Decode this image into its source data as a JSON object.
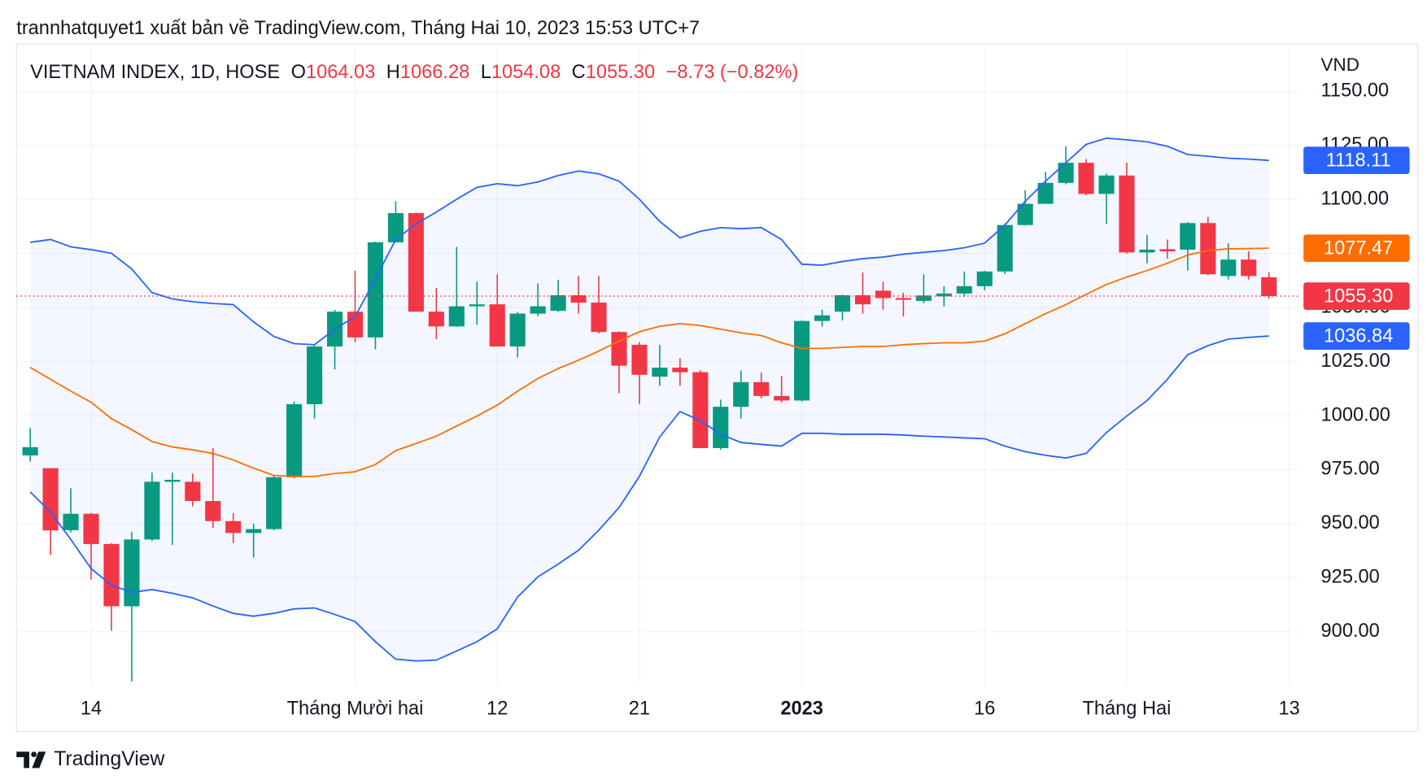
{
  "header": "trannhatquyet1 xuất bản về TradingView.com, Tháng Hai 10, 2023 15:53 UTC+7",
  "footer": "TradingView",
  "chart_data": {
    "type": "candlestick",
    "legend": {
      "symbol": "VIETNAM INDEX, 1D, HOSE",
      "items": [
        {
          "key": "O",
          "value": "1064.03"
        },
        {
          "key": "H",
          "value": "1066.28"
        },
        {
          "key": "L",
          "value": "1054.08"
        },
        {
          "key": "C",
          "value": "1055.30"
        }
      ],
      "change": "−8.73 (−0.82%)",
      "color": "#f23645"
    },
    "currency": "VND",
    "categories": [
      null,
      null,
      null,
      "14",
      null,
      null,
      null,
      null,
      null,
      null,
      null,
      null,
      null,
      null,
      null,
      null,
      "Tháng Mười hai",
      null,
      null,
      null,
      null,
      null,
      null,
      "12",
      null,
      null,
      null,
      null,
      null,
      null,
      "21",
      null,
      null,
      null,
      null,
      null,
      null,
      null,
      "2023",
      null,
      null,
      null,
      null,
      null,
      null,
      null,
      null,
      "16",
      null,
      null,
      null,
      null,
      null,
      null,
      "Tháng Hai",
      null,
      null,
      null,
      null,
      null,
      null,
      null,
      "13"
    ],
    "ylim": [
      875,
      1172
    ],
    "yticks": [
      {
        "value": 900,
        "label": "900.00"
      },
      {
        "value": 925,
        "label": "925.00"
      },
      {
        "value": 950,
        "label": "950.00"
      },
      {
        "value": 975,
        "label": "975.00"
      },
      {
        "value": 1000,
        "label": "1000.00"
      },
      {
        "value": 1025,
        "label": "1025.00"
      },
      {
        "value": 1050,
        "label": "1050.00"
      },
      {
        "value": 1075,
        "label": "1075.00"
      },
      {
        "value": 1100,
        "label": "1100.00"
      },
      {
        "value": 1125,
        "label": "1125.00"
      },
      {
        "value": 1150,
        "label": "1150.00"
      }
    ],
    "grid": true,
    "series": [
      {
        "type": "candlestick",
        "up_color": "#089981",
        "down_color": "#f23645",
        "last_label": "1055.30",
        "open": [
          981.6,
          975.7,
          947,
          954.6,
          940.6,
          911.8,
          942.7,
          969.4,
          969.4,
          960.5,
          951.2,
          945.7,
          947.5,
          971.5,
          1005.3,
          1032,
          1048.1,
          1036.2,
          1080.2,
          1093.7,
          1048.1,
          1041.3,
          1050.6,
          1051.5,
          1032,
          1047.2,
          1048.5,
          1055.7,
          1052.3,
          1038.7,
          1032.8,
          1018,
          1022.2,
          1020.1,
          985,
          1004.1,
          1015.5,
          1009.1,
          1007,
          1043.8,
          1048.1,
          1055.7,
          1057.8,
          1054.4,
          1053.1,
          1055.2,
          1056.5,
          1059.9,
          1066.7,
          1088.2,
          1098,
          1107.7,
          1117,
          1102.6,
          1111.1,
          1075.5,
          1077,
          1076.8,
          1089.1,
          1064.6,
          1072.2,
          1064.03,
          null
        ],
        "high": [
          994.3,
          975.7,
          966.4,
          955,
          941,
          946.1,
          973.6,
          973.6,
          973.2,
          985,
          955,
          950,
          972,
          1006.5,
          1032.5,
          1049,
          1067.1,
          1080.5,
          1099.2,
          1094,
          1059.1,
          1078.1,
          1062,
          1065.4,
          1048,
          1061.2,
          1062.9,
          1064.6,
          1064.6,
          1039,
          1034,
          1032.8,
          1026.5,
          1021,
          1007.4,
          1020.9,
          1020,
          1018.4,
          1044,
          1049,
          1056,
          1066.2,
          1062,
          1056.9,
          1065.4,
          1059.9,
          1066.7,
          1067,
          1089,
          1104.3,
          1112.8,
          1124.6,
          1118.7,
          1112,
          1117,
          1083.6,
          1081.5,
          1089.5,
          1092,
          1079.8,
          1076,
          1066.28,
          null
        ],
        "low": [
          978.7,
          935.5,
          946,
          924.1,
          900.4,
          877,
          942,
          940.2,
          958,
          948,
          941,
          934.3,
          947,
          971,
          998.6,
          1021.4,
          1034,
          1030.7,
          1080,
          1048,
          1035.4,
          1041,
          1042.1,
          1032,
          1026.9,
          1046,
          1048,
          1047.2,
          1038,
          1010.4,
          1005.3,
          1013.8,
          1013.8,
          985,
          984.2,
          998.6,
          1008,
          1006,
          1006.5,
          1041.3,
          1044,
          1047.2,
          1049,
          1045.9,
          1052,
          1050.6,
          1055,
          1058,
          1065.5,
          1088,
          1098,
          1107,
          1102,
          1088.7,
          1075,
          1070.5,
          1072.6,
          1067.1,
          1065,
          1063,
          1063,
          1054.08,
          null
        ],
        "close": [
          985.4,
          946.9,
          954.6,
          940.6,
          911.8,
          942.7,
          969.4,
          970.3,
          960.5,
          951.2,
          945.7,
          947.5,
          971.5,
          1005.3,
          1032,
          1048.1,
          1036.2,
          1080.2,
          1093.7,
          1048.1,
          1041.3,
          1050.6,
          1051.5,
          1032,
          1047.2,
          1050.6,
          1055.7,
          1052.3,
          1038.7,
          1023.1,
          1018.9,
          1022.2,
          1020.1,
          985,
          1004.1,
          1015.5,
          1009.1,
          1007,
          1043.8,
          1046.4,
          1055.7,
          1051.5,
          1054.4,
          1053.6,
          1055.6,
          1056.5,
          1059.9,
          1066.7,
          1088.2,
          1098,
          1107.7,
          1117,
          1102.6,
          1111.1,
          1075.5,
          1076.8,
          1076,
          1089.1,
          1065.4,
          1072.2,
          1064.6,
          1055.3,
          null
        ]
      },
      {
        "type": "line",
        "color": "#2962ff",
        "last_label": "1118.11",
        "values": [
          1080.2,
          1081.5,
          1078.1,
          1076.8,
          1075.1,
          1067.9,
          1056.9,
          1054,
          1052.7,
          1051.9,
          1051.4,
          1043.4,
          1036.6,
          1033.3,
          1032.8,
          1040,
          1045.9,
          1063.3,
          1081.5,
          1088.7,
          1094.2,
          1100.1,
          1105.6,
          1107.3,
          1106.4,
          1108.1,
          1111.1,
          1113.2,
          1111.9,
          1108.5,
          1100.1,
          1089.9,
          1082.3,
          1085.3,
          1087,
          1086.5,
          1087,
          1081.5,
          1070.1,
          1069.6,
          1071.3,
          1072.6,
          1073.4,
          1074.7,
          1075.6,
          1076.4,
          1077.7,
          1079.8,
          1088.2,
          1099.2,
          1108.5,
          1117,
          1125.5,
          1128.4,
          1127.6,
          1126.7,
          1124.6,
          1120.8,
          1120,
          1119.1,
          1118.7,
          1118.11,
          null
        ]
      },
      {
        "type": "line",
        "color": "#ff6d00",
        "last_label": "1077.47",
        "values": [
          1022.3,
          1016.8,
          1011.3,
          1006.2,
          998.6,
          993.5,
          988,
          985.5,
          984.2,
          982.5,
          979.5,
          975.7,
          972.3,
          971.9,
          971.9,
          973.2,
          974,
          977.4,
          983.8,
          987.1,
          990.5,
          995.2,
          999.8,
          1004.9,
          1011.3,
          1017.2,
          1021.8,
          1025.6,
          1029.9,
          1034.5,
          1038.8,
          1041.3,
          1042.6,
          1041.7,
          1040,
          1038.3,
          1037.1,
          1033.7,
          1031.1,
          1031.1,
          1031.6,
          1032,
          1032,
          1032.8,
          1033.3,
          1033.7,
          1033.7,
          1034.5,
          1037.9,
          1042.6,
          1047.2,
          1051.4,
          1056.1,
          1060.7,
          1064.1,
          1067.1,
          1070.5,
          1074.3,
          1076.4,
          1077.2,
          1077.3,
          1077.47,
          null
        ]
      },
      {
        "type": "line",
        "color": "#2962ff",
        "last_label": "1036.84",
        "values": [
          964.7,
          955.4,
          942.7,
          929.2,
          921.6,
          918.2,
          919.5,
          917.8,
          915.7,
          911.9,
          908.5,
          907.2,
          908.5,
          910.6,
          911,
          908,
          904.7,
          895.4,
          887.3,
          886.5,
          886.9,
          891.1,
          895.4,
          901.3,
          916.1,
          925.4,
          931.3,
          937.7,
          947,
          957.5,
          971.9,
          990.1,
          1001.9,
          997.7,
          991.4,
          987.6,
          986.7,
          985.9,
          991.8,
          991.8,
          991.4,
          991.4,
          991.4,
          991,
          990.5,
          990.1,
          989.7,
          989.3,
          985.9,
          983.3,
          981.6,
          980.4,
          982.5,
          992.2,
          999.8,
          1007,
          1016.8,
          1028.2,
          1032.4,
          1035.4,
          1036.2,
          1036.84,
          null
        ]
      }
    ],
    "band_fill": "rgba(41,98,255,0.05)"
  }
}
